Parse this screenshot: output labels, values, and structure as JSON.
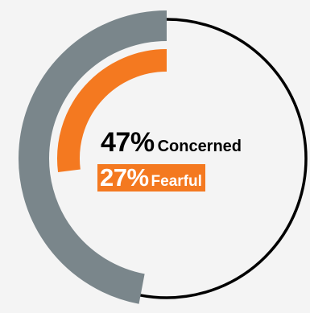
{
  "chart_data": {
    "type": "donut",
    "title": "",
    "series": [
      {
        "label": "Concerned",
        "value": 47,
        "unit": "%",
        "color": "#7a868b",
        "ring": "outer"
      },
      {
        "label": "Fearful",
        "value": 27,
        "unit": "%",
        "color": "#f47920",
        "ring": "inner"
      }
    ],
    "outline_color": "#000000",
    "range": [
      0,
      100
    ],
    "start": "top",
    "direction": "counter-clockwise"
  },
  "labels": {
    "concerned_pct": "47%",
    "concerned_word": "Concerned",
    "fearful_pct": "27%",
    "fearful_word": "Fearful"
  }
}
